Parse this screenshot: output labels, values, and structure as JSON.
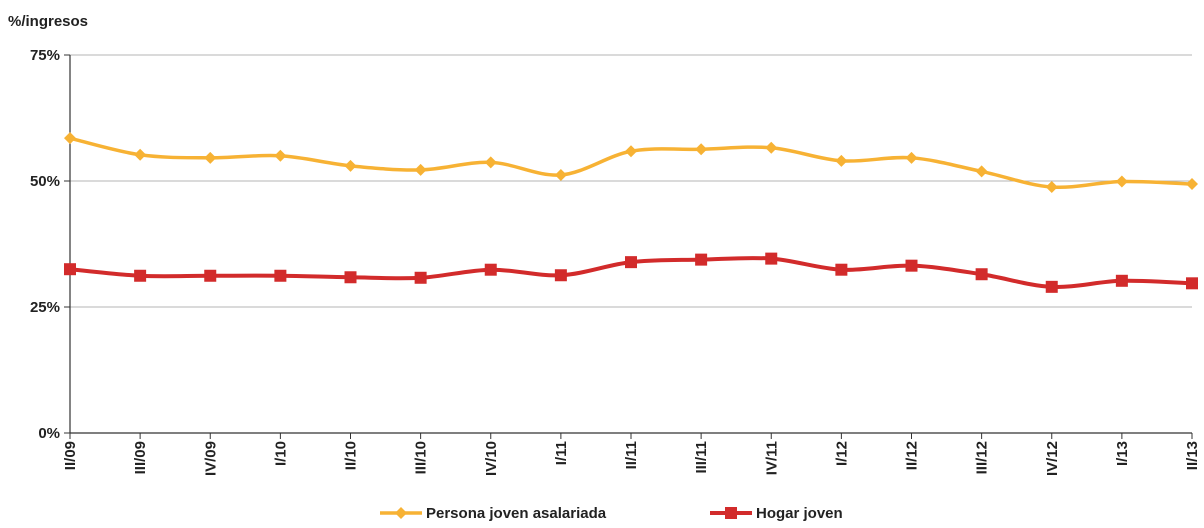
{
  "chart_data": {
    "type": "line",
    "ylabel": "%/ingresos",
    "ylim": [
      0,
      75
    ],
    "yticks": [
      0,
      25,
      50,
      75
    ],
    "ytick_labels": [
      "0%",
      "25%",
      "50%",
      "75%"
    ],
    "categories": [
      "II/09",
      "III/09",
      "IV/09",
      "I/10",
      "II/10",
      "III/10",
      "IV/10",
      "I/11",
      "II/11",
      "III/11",
      "IV/11",
      "I/12",
      "II/12",
      "III/12",
      "IV/12",
      "I/13",
      "II/13"
    ],
    "grid": "horizontal",
    "legend_position": "bottom",
    "series": [
      {
        "name": "Persona joven asalariada",
        "color": "#F7B234",
        "marker": "diamond",
        "values": [
          58.5,
          55.2,
          54.6,
          55.0,
          53.0,
          52.2,
          53.7,
          51.2,
          55.9,
          56.3,
          56.6,
          54.0,
          54.6,
          51.9,
          48.8,
          49.9,
          49.4
        ]
      },
      {
        "name": "Hogar joven",
        "color": "#D22B2B",
        "marker": "square",
        "values": [
          32.5,
          31.2,
          31.2,
          31.2,
          30.9,
          30.8,
          32.4,
          31.3,
          33.9,
          34.4,
          34.6,
          32.4,
          33.2,
          31.5,
          29.0,
          30.2,
          29.7
        ]
      }
    ]
  }
}
